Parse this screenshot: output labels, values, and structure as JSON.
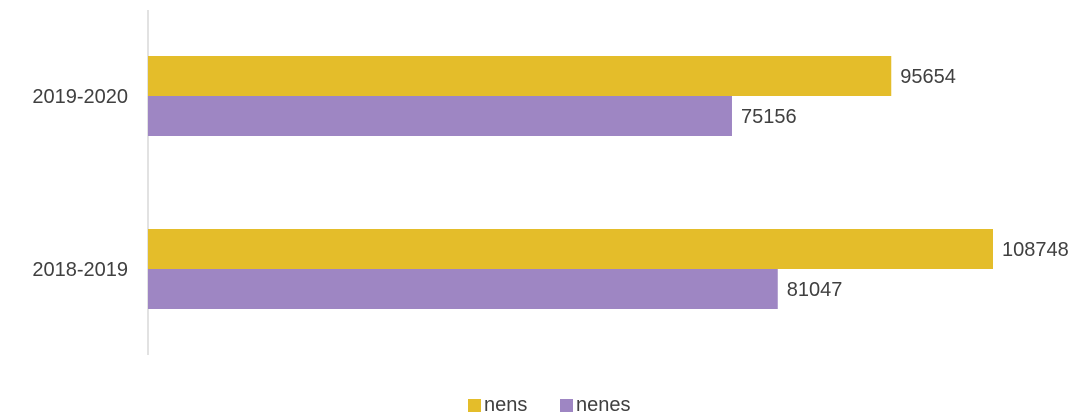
{
  "chart_data": {
    "type": "bar",
    "orientation": "horizontal",
    "categories": [
      "2019-2020",
      "2018-2019"
    ],
    "series": [
      {
        "name": "nens",
        "values": [
          95654,
          108748
        ],
        "color": "#E4BD2A"
      },
      {
        "name": "nenes",
        "values": [
          75156,
          81047
        ],
        "color": "#9E86C3"
      }
    ],
    "xlim": [
      0,
      110000
    ],
    "grid": false,
    "legend_position": "bottom"
  }
}
